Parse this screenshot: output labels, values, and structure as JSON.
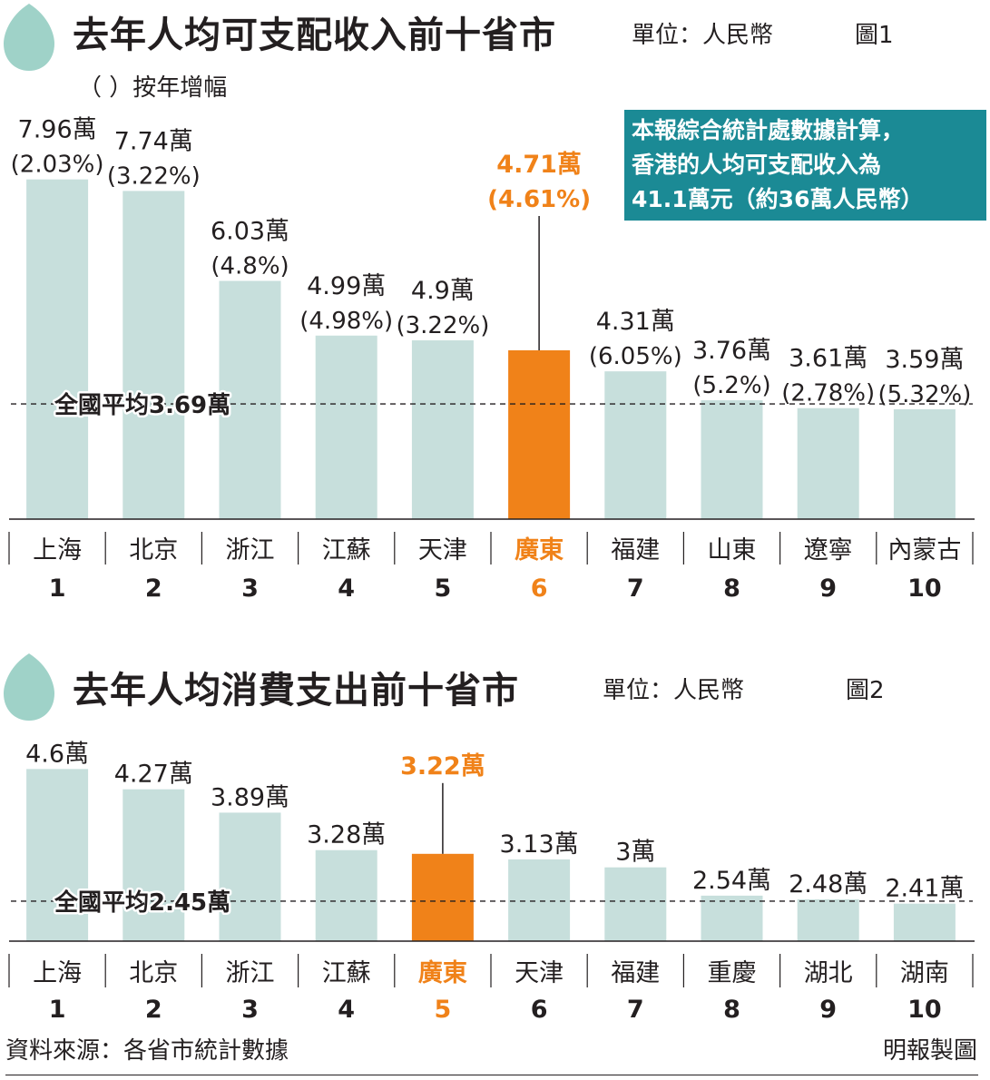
{
  "colors": {
    "bar": "#c7dfdc",
    "highlight": "#f08219",
    "teal": "#1b8a95",
    "text": "#231f20"
  },
  "icons": {
    "drop": "teardrop-icon"
  },
  "chart1": {
    "title": "去年人均可支配收入前十省市",
    "unit": "單位：人民幣",
    "figure": "圖1",
    "legend": "（ ）按年增幅",
    "note": [
      "本報綜合統計處數據計算，",
      "香港的人均可支配收入為",
      "41.1萬元（約36萬人民幣）"
    ],
    "average_label": "全國平均3.69萬"
  },
  "chart2": {
    "title": "去年人均消費支出前十省市",
    "unit": "單位：人民幣",
    "figure": "圖2",
    "average_label": "全國平均2.45萬"
  },
  "footer": {
    "source": "資料來源：各省市統計數據",
    "credit": "明報製圖"
  },
  "chart_data": [
    {
      "type": "bar",
      "title": "去年人均可支配收入前十省市",
      "ylabel": "",
      "xlabel": "",
      "unit_label": "萬",
      "categories": [
        "上海",
        "北京",
        "浙江",
        "江蘇",
        "天津",
        "廣東",
        "福建",
        "山東",
        "遼寧",
        "內蒙古"
      ],
      "ranks": [
        "1",
        "2",
        "3",
        "4",
        "5",
        "6",
        "7",
        "8",
        "9",
        "10"
      ],
      "values": [
        7.96,
        7.74,
        6.03,
        4.99,
        4.9,
        4.71,
        4.31,
        3.76,
        3.61,
        3.59
      ],
      "value_labels": [
        "7.96萬",
        "7.74萬",
        "6.03萬",
        "4.99萬",
        "4.9萬",
        "4.71萬",
        "4.31萬",
        "3.76萬",
        "3.61萬",
        "3.59萬"
      ],
      "growth_labels": [
        "(2.03%)",
        "(3.22%)",
        "(4.8%)",
        "(4.98%)",
        "(3.22%)",
        "(4.61%)",
        "(6.05%)",
        "(5.2%)",
        "(2.78%)",
        "(5.32%)"
      ],
      "highlight_index": 5,
      "average": 3.69,
      "ylim": [
        1.5,
        8.8
      ],
      "grid": false
    },
    {
      "type": "bar",
      "title": "去年人均消費支出前十省市",
      "ylabel": "",
      "xlabel": "",
      "unit_label": "萬",
      "categories": [
        "上海",
        "北京",
        "浙江",
        "江蘇",
        "廣東",
        "天津",
        "福建",
        "重慶",
        "湖北",
        "湖南"
      ],
      "ranks": [
        "1",
        "2",
        "3",
        "4",
        "5",
        "6",
        "7",
        "8",
        "9",
        "10"
      ],
      "values": [
        4.6,
        4.27,
        3.89,
        3.28,
        3.22,
        3.13,
        3.0,
        2.54,
        2.48,
        2.41
      ],
      "value_labels": [
        "4.6萬",
        "4.27萬",
        "3.89萬",
        "3.28萬",
        "3.22萬",
        "3.13萬",
        "3萬",
        "2.54萬",
        "2.48萬",
        "2.41萬"
      ],
      "highlight_index": 4,
      "average": 2.45,
      "ylim": [
        1.8,
        4.9
      ],
      "grid": false
    }
  ]
}
